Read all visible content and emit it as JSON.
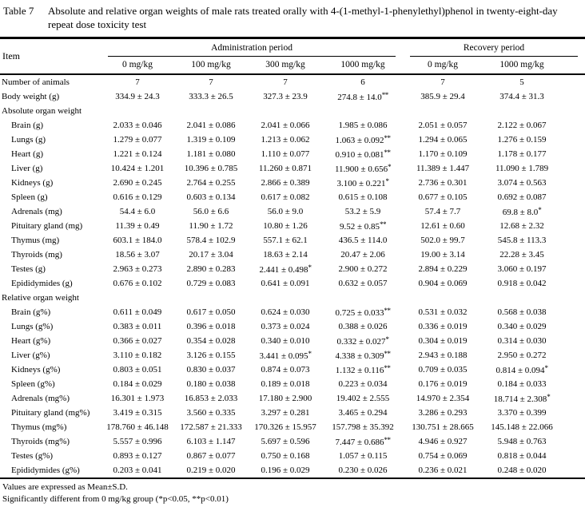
{
  "caption": {
    "label": "Table 7",
    "text": "Absolute and relative organ weights of male rats treated orally with 4-(1-methyl-1-phenylethyl)phenol in twenty-eight-day repeat dose toxicity test"
  },
  "table": {
    "header": {
      "item_label": "Item",
      "groups": [
        {
          "label": "Administration period",
          "span": 4
        },
        {
          "label": "Recovery period",
          "span": 2
        }
      ],
      "doses": [
        "0 mg/kg",
        "100 mg/kg",
        "300 mg/kg",
        "1000 mg/kg",
        "0 mg/kg",
        "1000 mg/kg"
      ]
    },
    "rows": [
      {
        "item": "Number of animals",
        "indent": 0,
        "values": [
          "7",
          "7",
          "7",
          "6",
          "7",
          "5"
        ]
      },
      {
        "item": "Body weight (g)",
        "indent": 0,
        "values": [
          "334.9 ± 24.3",
          "333.3 ± 26.5",
          "327.3 ± 23.9",
          "274.8 ± 14.0**",
          "385.9 ± 29.4",
          "374.4 ± 31.3"
        ]
      },
      {
        "item": "Absolute organ weight",
        "indent": 0,
        "section": true
      },
      {
        "item": "Brain (g)",
        "indent": 1,
        "values": [
          "2.033 ± 0.046",
          "2.041 ± 0.086",
          "2.041 ± 0.066",
          "1.985 ± 0.086",
          "2.051 ± 0.057",
          "2.122 ± 0.067"
        ]
      },
      {
        "item": "Lungs (g)",
        "indent": 1,
        "values": [
          "1.279 ± 0.077",
          "1.319 ± 0.109",
          "1.213 ± 0.062",
          "1.063 ± 0.092**",
          "1.294 ± 0.065",
          "1.276 ± 0.159"
        ]
      },
      {
        "item": "Heart (g)",
        "indent": 1,
        "values": [
          "1.221 ± 0.124",
          "1.181 ± 0.080",
          "1.110 ± 0.077",
          "0.910 ± 0.081**",
          "1.170 ± 0.109",
          "1.178 ± 0.177"
        ]
      },
      {
        "item": "Liver (g)",
        "indent": 1,
        "values": [
          "10.424 ± 1.201",
          "10.396 ± 0.785",
          "11.260 ± 0.871",
          "11.900 ± 0.656*",
          "11.389 ± 1.447",
          "11.090 ± 1.789"
        ]
      },
      {
        "item": "Kidneys (g)",
        "indent": 1,
        "values": [
          "2.690 ± 0.245",
          "2.764 ± 0.255",
          "2.866 ± 0.389",
          "3.100 ± 0.221*",
          "2.736 ± 0.301",
          "3.074 ± 0.563"
        ]
      },
      {
        "item": "Spleen (g)",
        "indent": 1,
        "values": [
          "0.616 ± 0.129",
          "0.603 ± 0.134",
          "0.617 ± 0.082",
          "0.615 ± 0.108",
          "0.677 ± 0.105",
          "0.692 ± 0.087"
        ]
      },
      {
        "item": "Adrenals (mg)",
        "indent": 1,
        "values": [
          "54.4 ± 6.0",
          "56.0 ± 6.6",
          "56.0 ± 9.0",
          "53.2 ± 5.9",
          "57.4 ± 7.7",
          "69.8 ± 8.0*"
        ]
      },
      {
        "item": "Pituitary gland (mg)",
        "indent": 1,
        "values": [
          "11.39 ± 0.49",
          "11.90 ± 1.72",
          "10.80 ± 1.26",
          "9.52 ± 0.85**",
          "12.61 ± 0.60",
          "12.68 ± 2.32"
        ]
      },
      {
        "item": "Thymus (mg)",
        "indent": 1,
        "values": [
          "603.1 ± 184.0",
          "578.4 ± 102.9",
          "557.1 ± 62.1",
          "436.5 ± 114.0",
          "502.0 ± 99.7",
          "545.8 ± 113.3"
        ]
      },
      {
        "item": "Thyroids (mg)",
        "indent": 1,
        "values": [
          "18.56 ± 3.07",
          "20.17 ± 3.04",
          "18.63 ± 2.14",
          "20.47 ± 2.06",
          "19.00 ± 3.14",
          "22.28 ± 3.45"
        ]
      },
      {
        "item": "Testes (g)",
        "indent": 1,
        "values": [
          "2.963 ± 0.273",
          "2.890 ± 0.283",
          "2.441 ± 0.498*",
          "2.900 ± 0.272",
          "2.894 ± 0.229",
          "3.060 ± 0.197"
        ]
      },
      {
        "item": "Epididymides (g)",
        "indent": 1,
        "values": [
          "0.676 ± 0.102",
          "0.729 ± 0.083",
          "0.641 ± 0.091",
          "0.632 ± 0.057",
          "0.904 ± 0.069",
          "0.918 ± 0.042"
        ]
      },
      {
        "item": "Relative organ weight",
        "indent": 0,
        "section": true
      },
      {
        "item": "Brain (g%)",
        "indent": 1,
        "values": [
          "0.611 ± 0.049",
          "0.617 ± 0.050",
          "0.624 ± 0.030",
          "0.725 ± 0.033**",
          "0.531 ± 0.032",
          "0.568 ± 0.038"
        ]
      },
      {
        "item": "Lungs (g%)",
        "indent": 1,
        "values": [
          "0.383 ± 0.011",
          "0.396 ± 0.018",
          "0.373 ± 0.024",
          "0.388 ± 0.026",
          "0.336 ± 0.019",
          "0.340 ± 0.029"
        ]
      },
      {
        "item": "Heart (g%)",
        "indent": 1,
        "values": [
          "0.366 ± 0.027",
          "0.354 ± 0.028",
          "0.340 ± 0.010",
          "0.332 ± 0.027*",
          "0.304 ± 0.019",
          "0.314 ± 0.030"
        ]
      },
      {
        "item": "Liver (g%)",
        "indent": 1,
        "values": [
          "3.110 ± 0.182",
          "3.126 ± 0.155",
          "3.441 ± 0.095*",
          "4.338 ± 0.309**",
          "2.943 ± 0.188",
          "2.950 ± 0.272"
        ]
      },
      {
        "item": "Kidneys (g%)",
        "indent": 1,
        "values": [
          "0.803 ± 0.051",
          "0.830 ± 0.037",
          "0.874 ± 0.073",
          "1.132 ± 0.116**",
          "0.709 ± 0.035",
          "0.814 ± 0.094*"
        ]
      },
      {
        "item": "Spleen (g%)",
        "indent": 1,
        "values": [
          "0.184 ± 0.029",
          "0.180 ± 0.038",
          "0.189 ± 0.018",
          "0.223 ± 0.034",
          "0.176 ± 0.019",
          "0.184 ± 0.033"
        ]
      },
      {
        "item": "Adrenals (mg%)",
        "indent": 1,
        "values": [
          "16.301 ± 1.973",
          "16.853 ± 2.033",
          "17.180 ± 2.900",
          "19.402 ± 2.555",
          "14.970 ± 2.354",
          "18.714 ± 2.308*"
        ]
      },
      {
        "item": "Pituitary gland (mg%)",
        "indent": 1,
        "values": [
          "3.419 ± 0.315",
          "3.560 ± 0.335",
          "3.297 ± 0.281",
          "3.465 ± 0.294",
          "3.286 ± 0.293",
          "3.370 ± 0.399"
        ]
      },
      {
        "item": "Thymus (mg%)",
        "indent": 1,
        "values": [
          "178.760 ± 46.148",
          "172.587 ± 21.333",
          "170.326 ± 15.957",
          "157.798 ± 35.392",
          "130.751 ± 28.665",
          "145.148 ± 22.066"
        ]
      },
      {
        "item": "Thyroids (mg%)",
        "indent": 1,
        "values": [
          "5.557 ± 0.996",
          "6.103 ± 1.147",
          "5.697 ± 0.596",
          "7.447 ± 0.686**",
          "4.946 ± 0.927",
          "5.948 ± 0.763"
        ]
      },
      {
        "item": "Testes (g%)",
        "indent": 1,
        "values": [
          "0.893 ± 0.127",
          "0.867 ± 0.077",
          "0.750 ± 0.168",
          "1.057 ± 0.115",
          "0.754 ± 0.069",
          "0.818 ± 0.044"
        ]
      },
      {
        "item": "Epididymides (g%)",
        "indent": 1,
        "values": [
          "0.203 ± 0.041",
          "0.219 ± 0.020",
          "0.196 ± 0.029",
          "0.230 ± 0.026",
          "0.236 ± 0.021",
          "0.248 ± 0.020"
        ]
      }
    ]
  },
  "footnotes": [
    "Values are expressed as Mean±S.D.",
    "Significantly different from 0 mg/kg group (*p<0.05, **p<0.01)"
  ]
}
